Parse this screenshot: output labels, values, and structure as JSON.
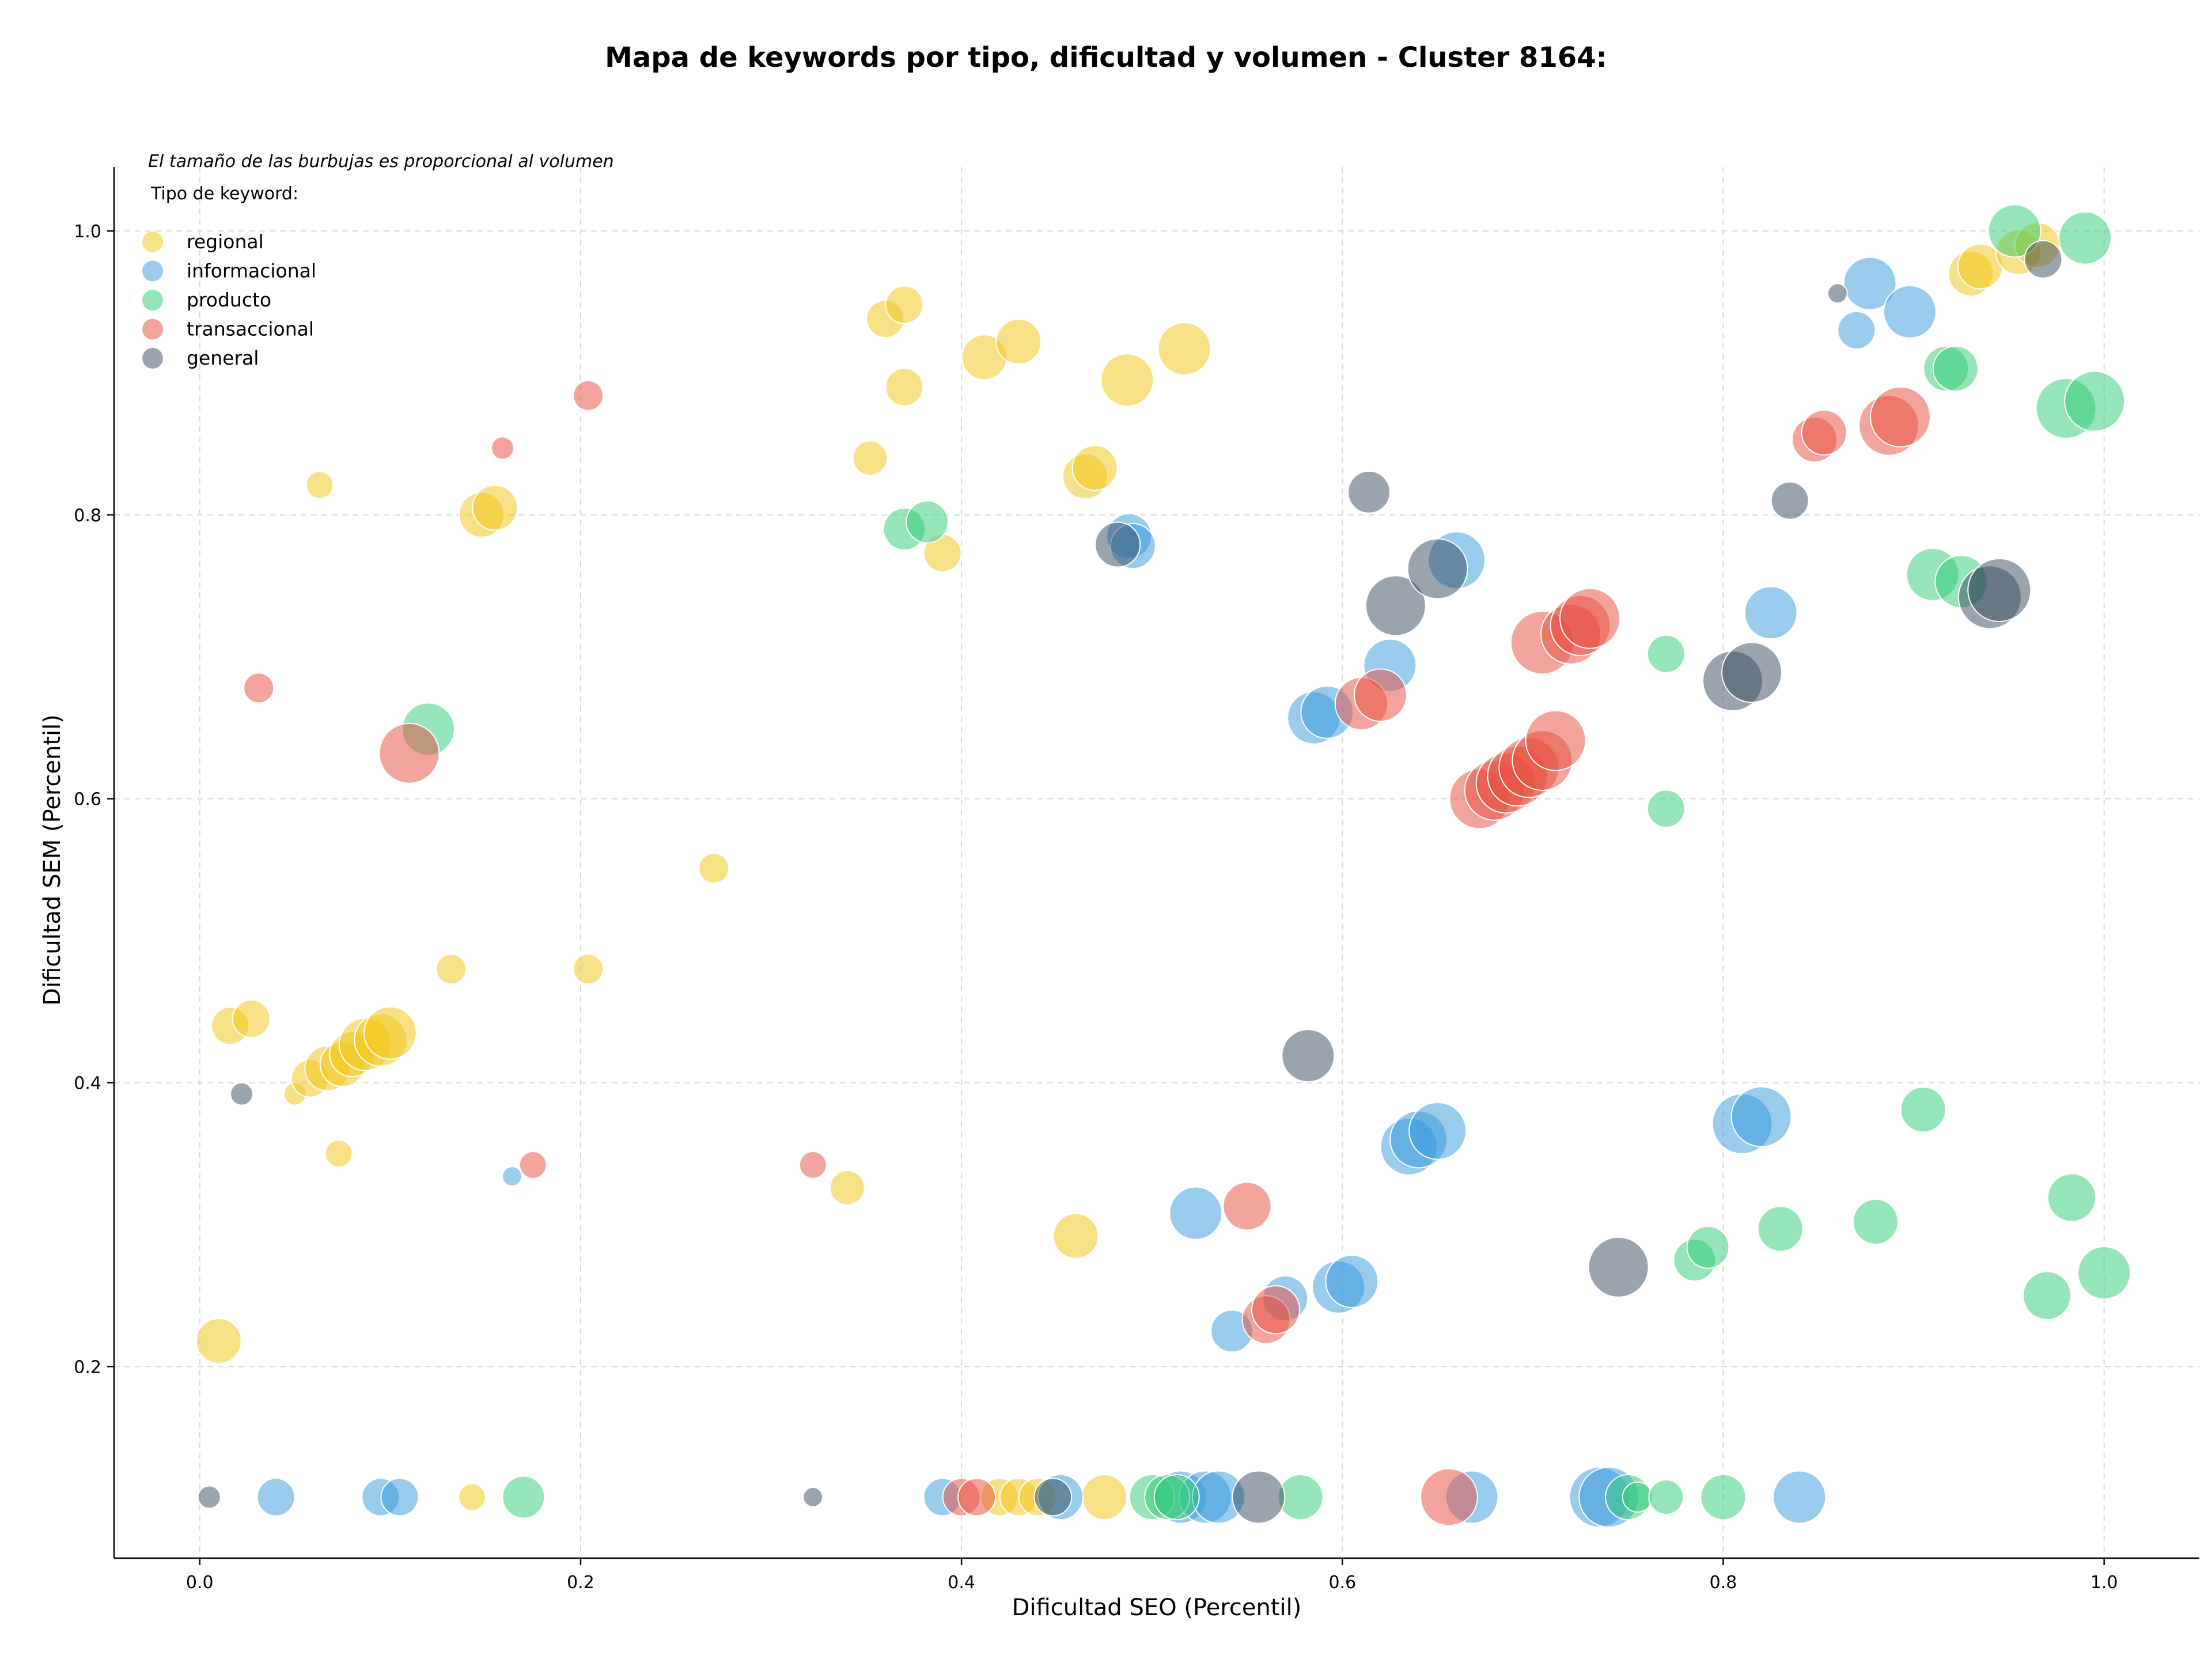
{
  "chart_data": {
    "type": "scatter",
    "title": "Mapa de keywords por tipo, dificultad y volumen - Cluster 8164:",
    "xlabel": "Dificultad SEO (Percentil)",
    "ylabel": "Dificultad SEM (Percentil)",
    "xlim": [
      -0.045,
      1.05
    ],
    "ylim": [
      0.065,
      1.045
    ],
    "xticks": [
      0.0,
      0.2,
      0.4,
      0.6,
      0.8,
      1.0
    ],
    "yticks": [
      0.2,
      0.4,
      0.6,
      0.8,
      1.0
    ],
    "xtick_labels": [
      "0.0",
      "0.2",
      "0.4",
      "0.6",
      "0.8",
      "1.0"
    ],
    "ytick_labels": [
      "0.2",
      "0.4",
      "0.6",
      "0.8",
      "1.0"
    ],
    "grid": true,
    "note": "El tamaño de las burbujas es proporcional al volumen",
    "legend": {
      "title": "Tipo de keyword:",
      "placement": "top-left"
    },
    "series": [
      {
        "name": "regional",
        "color": "#f1c40f",
        "points": [
          [
            0.01,
            0.218,
            3
          ],
          [
            0.016,
            0.44,
            2.5
          ],
          [
            0.027,
            0.445,
            2.5
          ],
          [
            0.05,
            0.392,
            1.5
          ],
          [
            0.058,
            0.403,
            2.5
          ],
          [
            0.067,
            0.41,
            3
          ],
          [
            0.075,
            0.413,
            3
          ],
          [
            0.08,
            0.42,
            3
          ],
          [
            0.087,
            0.427,
            3.5
          ],
          [
            0.095,
            0.43,
            3.5
          ],
          [
            0.1,
            0.435,
            3.5
          ],
          [
            0.073,
            0.35,
            1.8
          ],
          [
            0.063,
            0.821,
            1.8
          ],
          [
            0.148,
            0.8,
            3
          ],
          [
            0.155,
            0.805,
            3
          ],
          [
            0.143,
            0.108,
            1.8
          ],
          [
            0.132,
            0.48,
            2
          ],
          [
            0.204,
            0.48,
            2
          ],
          [
            0.27,
            0.551,
            2
          ],
          [
            0.34,
            0.326,
            2.3
          ],
          [
            0.352,
            0.84,
            2.3
          ],
          [
            0.36,
            0.938,
            2.5
          ],
          [
            0.37,
            0.948,
            2.5
          ],
          [
            0.37,
            0.89,
            2.5
          ],
          [
            0.39,
            0.773,
            2.5
          ],
          [
            0.412,
            0.911,
            3
          ],
          [
            0.43,
            0.922,
            3
          ],
          [
            0.465,
            0.827,
            3
          ],
          [
            0.47,
            0.833,
            3
          ],
          [
            0.487,
            0.895,
            3.5
          ],
          [
            0.517,
            0.917,
            3.5
          ],
          [
            0.46,
            0.292,
            3
          ],
          [
            0.42,
            0.108,
            2.5
          ],
          [
            0.43,
            0.108,
            2.5
          ],
          [
            0.44,
            0.108,
            2.5
          ],
          [
            0.475,
            0.108,
            3
          ],
          [
            0.93,
            0.97,
            3
          ],
          [
            0.935,
            0.975,
            3
          ],
          [
            0.955,
            0.985,
            3
          ],
          [
            0.965,
            0.99,
            3
          ]
        ]
      },
      {
        "name": "informacional",
        "color": "#3498db",
        "points": [
          [
            0.04,
            0.108,
            2.5
          ],
          [
            0.095,
            0.108,
            2.5
          ],
          [
            0.105,
            0.108,
            2.5
          ],
          [
            0.164,
            0.334,
            1.3
          ],
          [
            0.39,
            0.108,
            2.5
          ],
          [
            0.452,
            0.108,
            3
          ],
          [
            0.488,
            0.785,
            3
          ],
          [
            0.49,
            0.778,
            3
          ],
          [
            0.523,
            0.308,
            3.5
          ],
          [
            0.515,
            0.108,
            3.5
          ],
          [
            0.528,
            0.108,
            3.5
          ],
          [
            0.535,
            0.108,
            3.5
          ],
          [
            0.542,
            0.225,
            2.8
          ],
          [
            0.57,
            0.248,
            3
          ],
          [
            0.585,
            0.657,
            3.5
          ],
          [
            0.592,
            0.661,
            3.5
          ],
          [
            0.598,
            0.256,
            3.5
          ],
          [
            0.605,
            0.26,
            3.5
          ],
          [
            0.625,
            0.694,
            3.5
          ],
          [
            0.635,
            0.355,
            3.8
          ],
          [
            0.64,
            0.36,
            3.8
          ],
          [
            0.65,
            0.366,
            3.8
          ],
          [
            0.66,
            0.768,
            3.8
          ],
          [
            0.668,
            0.108,
            3.5
          ],
          [
            0.735,
            0.108,
            4
          ],
          [
            0.74,
            0.108,
            4
          ],
          [
            0.81,
            0.371,
            4
          ],
          [
            0.82,
            0.376,
            4
          ],
          [
            0.825,
            0.731,
            3.5
          ],
          [
            0.84,
            0.108,
            3.5
          ],
          [
            0.87,
            0.93,
            2.5
          ],
          [
            0.877,
            0.963,
            3.5
          ],
          [
            0.898,
            0.943,
            3.5
          ]
        ]
      },
      {
        "name": "producto",
        "color": "#2ecc71",
        "points": [
          [
            0.12,
            0.649,
            3.5
          ],
          [
            0.17,
            0.108,
            2.8
          ],
          [
            0.37,
            0.79,
            2.8
          ],
          [
            0.382,
            0.795,
            2.8
          ],
          [
            0.5,
            0.108,
            3
          ],
          [
            0.508,
            0.108,
            3
          ],
          [
            0.513,
            0.108,
            3
          ],
          [
            0.578,
            0.108,
            3
          ],
          [
            0.75,
            0.108,
            3
          ],
          [
            0.755,
            0.108,
            2
          ],
          [
            0.77,
            0.108,
            2.3
          ],
          [
            0.77,
            0.702,
            2.5
          ],
          [
            0.77,
            0.593,
            2.5
          ],
          [
            0.785,
            0.275,
            2.8
          ],
          [
            0.792,
            0.284,
            2.8
          ],
          [
            0.8,
            0.108,
            3
          ],
          [
            0.83,
            0.297,
            3
          ],
          [
            0.88,
            0.302,
            3
          ],
          [
            0.905,
            0.381,
            3
          ],
          [
            0.91,
            0.758,
            3.5
          ],
          [
            0.917,
            0.903,
            3
          ],
          [
            0.922,
            0.903,
            3
          ],
          [
            0.925,
            0.753,
            3.5
          ],
          [
            0.953,
            1.0,
            3.5
          ],
          [
            0.97,
            0.25,
            3.2
          ],
          [
            0.98,
            0.875,
            4
          ],
          [
            0.983,
            0.319,
            3.2
          ],
          [
            0.99,
            0.995,
            3.5
          ],
          [
            0.995,
            0.88,
            4
          ],
          [
            1.0,
            0.266,
            3.5
          ]
        ]
      },
      {
        "name": "transaccional",
        "color": "#e74c3c",
        "points": [
          [
            0.031,
            0.678,
            2
          ],
          [
            0.11,
            0.632,
            4
          ],
          [
            0.159,
            0.847,
            1.5
          ],
          [
            0.175,
            0.342,
            1.8
          ],
          [
            0.204,
            0.884,
            2
          ],
          [
            0.322,
            0.342,
            1.8
          ],
          [
            0.4,
            0.108,
            2.5
          ],
          [
            0.408,
            0.108,
            2.5
          ],
          [
            0.55,
            0.313,
            3.2
          ],
          [
            0.56,
            0.233,
            3.2
          ],
          [
            0.565,
            0.24,
            3.2
          ],
          [
            0.61,
            0.667,
            3.5
          ],
          [
            0.62,
            0.673,
            3.5
          ],
          [
            0.656,
            0.108,
            3.8
          ],
          [
            0.672,
            0.6,
            4
          ],
          [
            0.68,
            0.606,
            4
          ],
          [
            0.686,
            0.611,
            4
          ],
          [
            0.692,
            0.616,
            4
          ],
          [
            0.698,
            0.622,
            4
          ],
          [
            0.705,
            0.627,
            4
          ],
          [
            0.712,
            0.641,
            4
          ],
          [
            0.705,
            0.71,
            4.2
          ],
          [
            0.72,
            0.716,
            4
          ],
          [
            0.725,
            0.722,
            4
          ],
          [
            0.73,
            0.727,
            4
          ],
          [
            0.848,
            0.853,
            3
          ],
          [
            0.853,
            0.858,
            3
          ],
          [
            0.887,
            0.863,
            4
          ],
          [
            0.893,
            0.869,
            4
          ]
        ]
      },
      {
        "name": "general",
        "color": "#34495e",
        "points": [
          [
            0.005,
            0.108,
            1.5
          ],
          [
            0.022,
            0.392,
            1.5
          ],
          [
            0.322,
            0.108,
            1.3
          ],
          [
            0.448,
            0.108,
            2.5
          ],
          [
            0.482,
            0.779,
            3
          ],
          [
            0.556,
            0.108,
            3.5
          ],
          [
            0.582,
            0.419,
            3.5
          ],
          [
            0.614,
            0.816,
            2.8
          ],
          [
            0.628,
            0.736,
            4
          ],
          [
            0.65,
            0.762,
            4
          ],
          [
            0.745,
            0.27,
            4
          ],
          [
            0.805,
            0.683,
            4
          ],
          [
            0.815,
            0.689,
            4
          ],
          [
            0.835,
            0.81,
            2.5
          ],
          [
            0.86,
            0.956,
            1.3
          ],
          [
            0.94,
            0.742,
            4.2
          ],
          [
            0.945,
            0.747,
            4.2
          ],
          [
            0.968,
            0.98,
            2.5
          ]
        ]
      }
    ]
  }
}
